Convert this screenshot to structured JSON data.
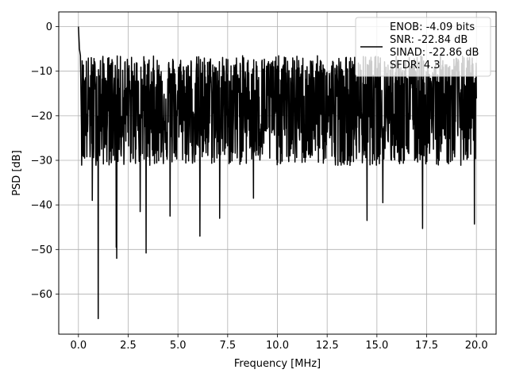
{
  "chart_data": {
    "type": "line",
    "title": "",
    "xlabel": "Frequency [MHz]",
    "ylabel": "PSD [dB]",
    "xlim": [
      -0.99,
      20.99
    ],
    "ylim": [
      -69,
      3.3
    ],
    "xticks": [
      0.0,
      2.5,
      5.0,
      7.5,
      10.0,
      12.5,
      15.0,
      17.5,
      20.0
    ],
    "xtick_labels": [
      "0.0",
      "2.5",
      "5.0",
      "7.5",
      "10.0",
      "12.5",
      "15.0",
      "17.5",
      "20.0"
    ],
    "yticks": [
      0,
      -10,
      -20,
      -30,
      -40,
      -50,
      -60
    ],
    "ytick_labels": [
      "0",
      "−10",
      "−20",
      "−30",
      "−40",
      "−50",
      "−60"
    ],
    "grid": true,
    "legend_position": "top-right",
    "series": [
      {
        "name": "ENOB: -4.09 bits\nSNR: -22.84 dB\nSINAD: -22.86 dB\nSFDR: 4.3",
        "legend_lines": [
          "ENOB: -4.09 bits",
          "SNR: -22.84 dB",
          "SINAD: -22.86 dB",
          "SFDR: 4.3"
        ],
        "color": "#000000",
        "x_range": [
          0,
          20
        ],
        "peaks": [
          [
            0.0,
            0.0
          ],
          [
            0.05,
            -5.0
          ],
          [
            0.1,
            -6.5
          ]
        ],
        "dips": [
          [
            0.99,
            -65.5
          ],
          [
            1.93,
            -52.0
          ],
          [
            3.4,
            -50.8
          ],
          [
            6.1,
            -47.0
          ],
          [
            17.3,
            -45.3
          ],
          [
            19.9,
            -44.3
          ],
          [
            1.9,
            -49.5
          ],
          [
            0.7,
            -39.0
          ],
          [
            4.6,
            -42.5
          ],
          [
            7.1,
            -43.0
          ],
          [
            14.5,
            -43.5
          ],
          [
            3.1,
            -41.5
          ],
          [
            15.3,
            -39.5
          ],
          [
            8.8,
            -38.5
          ]
        ],
        "upper_envelope": -6.5,
        "lower_typical": -30.0,
        "center": -18.5
      }
    ]
  }
}
